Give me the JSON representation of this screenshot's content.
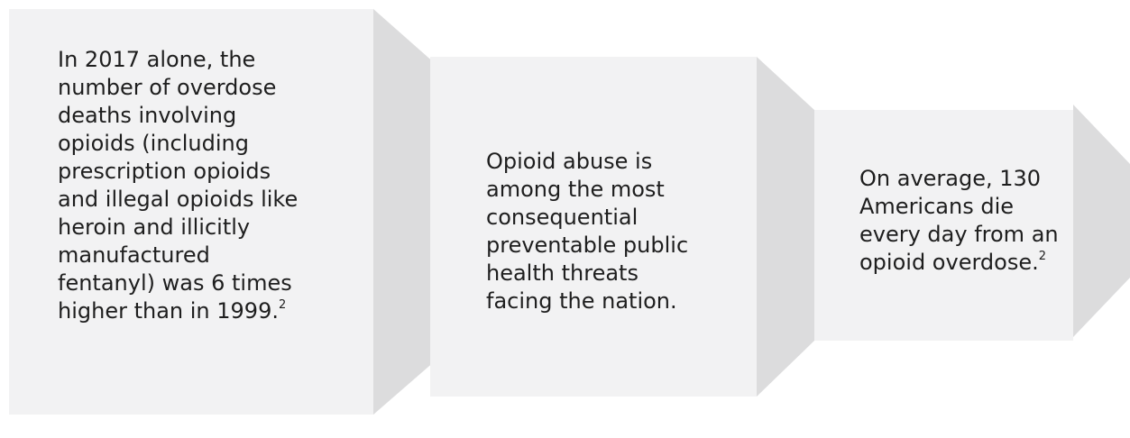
{
  "boxes": [
    {
      "text": "In 2017 alone, the number of overdose deaths involving opioids (including prescription opioids and illegal opioids like heroin and illicitly manufactured fentanyl) was 6 times higher than in 1999.",
      "footnote": "2"
    },
    {
      "text": "Opioid abuse is among the most consequential preventable public health threats facing the nation.",
      "footnote": ""
    },
    {
      "text": "On average, 130 Americans die every day from an opioid overdose.",
      "footnote": "2"
    }
  ],
  "colors": {
    "box_fill": "#f2f2f3",
    "shadow_fill": "#dcdcdd",
    "text": "#1e1e1e"
  }
}
